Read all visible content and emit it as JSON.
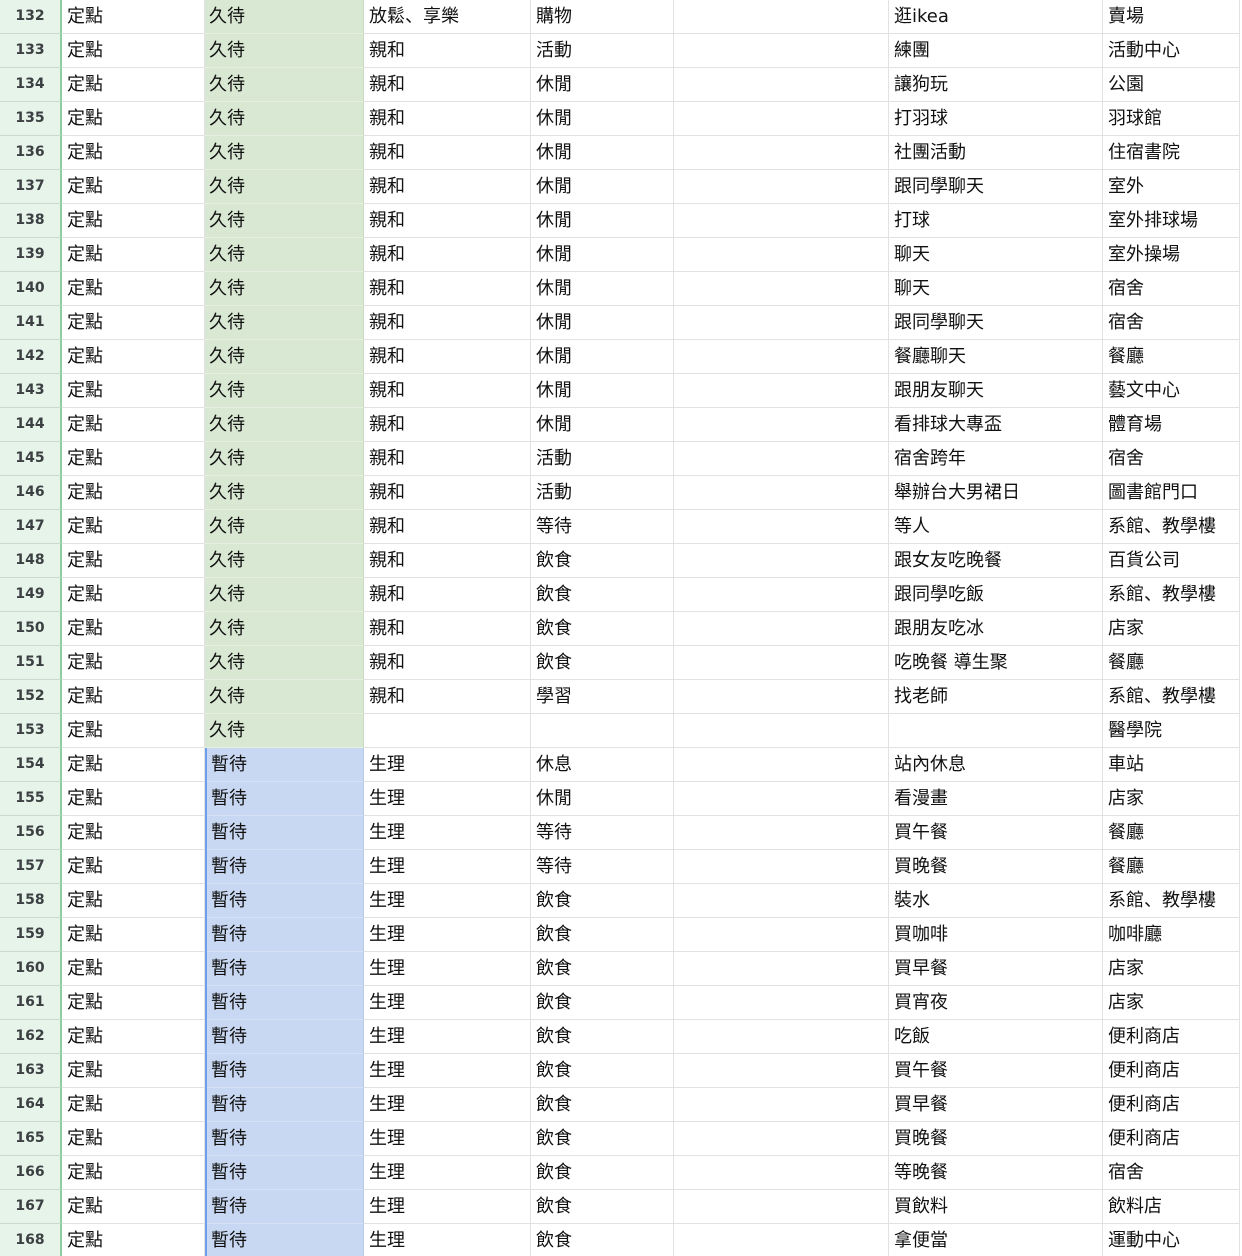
{
  "colors": {
    "long_stay": "#d9e8d3",
    "short_stay": "#c9d8f2",
    "row_header": "#e6f4ea"
  },
  "rows": [
    {
      "n": "132",
      "a": "定點",
      "b": "久待",
      "c": "放鬆、享樂",
      "d": "購物",
      "e": "",
      "f": "逛ikea",
      "g": "賣場"
    },
    {
      "n": "133",
      "a": "定點",
      "b": "久待",
      "c": "親和",
      "d": "活動",
      "e": "",
      "f": "練團",
      "g": "活動中心"
    },
    {
      "n": "134",
      "a": "定點",
      "b": "久待",
      "c": "親和",
      "d": "休閒",
      "e": "",
      "f": "讓狗玩",
      "g": "公園"
    },
    {
      "n": "135",
      "a": "定點",
      "b": "久待",
      "c": "親和",
      "d": "休閒",
      "e": "",
      "f": "打羽球",
      "g": "羽球館"
    },
    {
      "n": "136",
      "a": "定點",
      "b": "久待",
      "c": "親和",
      "d": "休閒",
      "e": "",
      "f": "社團活動",
      "g": "住宿書院"
    },
    {
      "n": "137",
      "a": "定點",
      "b": "久待",
      "c": "親和",
      "d": "休閒",
      "e": "",
      "f": "跟同學聊天",
      "g": "室外"
    },
    {
      "n": "138",
      "a": "定點",
      "b": "久待",
      "c": "親和",
      "d": "休閒",
      "e": "",
      "f": "打球",
      "g": "室外排球場"
    },
    {
      "n": "139",
      "a": "定點",
      "b": "久待",
      "c": "親和",
      "d": "休閒",
      "e": "",
      "f": "聊天",
      "g": "室外操場"
    },
    {
      "n": "140",
      "a": "定點",
      "b": "久待",
      "c": "親和",
      "d": "休閒",
      "e": "",
      "f": "聊天",
      "g": "宿舍"
    },
    {
      "n": "141",
      "a": "定點",
      "b": "久待",
      "c": "親和",
      "d": "休閒",
      "e": "",
      "f": "跟同學聊天",
      "g": "宿舍"
    },
    {
      "n": "142",
      "a": "定點",
      "b": "久待",
      "c": "親和",
      "d": "休閒",
      "e": "",
      "f": "餐廳聊天",
      "g": "餐廳"
    },
    {
      "n": "143",
      "a": "定點",
      "b": "久待",
      "c": "親和",
      "d": "休閒",
      "e": "",
      "f": "跟朋友聊天",
      "g": "藝文中心"
    },
    {
      "n": "144",
      "a": "定點",
      "b": "久待",
      "c": "親和",
      "d": "休閒",
      "e": "",
      "f": "看排球大專盃",
      "g": "體育場"
    },
    {
      "n": "145",
      "a": "定點",
      "b": "久待",
      "c": "親和",
      "d": "活動",
      "e": "",
      "f": "宿舍跨年",
      "g": "宿舍"
    },
    {
      "n": "146",
      "a": "定點",
      "b": "久待",
      "c": "親和",
      "d": "活動",
      "e": "",
      "f": "舉辦台大男裙日",
      "g": "圖書館門口"
    },
    {
      "n": "147",
      "a": "定點",
      "b": "久待",
      "c": "親和",
      "d": "等待",
      "e": "",
      "f": "等人",
      "g": "系館、教學樓"
    },
    {
      "n": "148",
      "a": "定點",
      "b": "久待",
      "c": "親和",
      "d": "飲食",
      "e": "",
      "f": "跟女友吃晚餐",
      "g": "百貨公司"
    },
    {
      "n": "149",
      "a": "定點",
      "b": "久待",
      "c": "親和",
      "d": "飲食",
      "e": "",
      "f": "跟同學吃飯",
      "g": "系館、教學樓"
    },
    {
      "n": "150",
      "a": "定點",
      "b": "久待",
      "c": "親和",
      "d": "飲食",
      "e": "",
      "f": "跟朋友吃冰",
      "g": "店家"
    },
    {
      "n": "151",
      "a": "定點",
      "b": "久待",
      "c": "親和",
      "d": "飲食",
      "e": "",
      "f": "吃晚餐 導生聚",
      "g": "餐廳"
    },
    {
      "n": "152",
      "a": "定點",
      "b": "久待",
      "c": "親和",
      "d": "學習",
      "e": "",
      "f": "找老師",
      "g": "系館、教學樓"
    },
    {
      "n": "153",
      "a": "定點",
      "b": "久待",
      "c": "",
      "d": "",
      "e": "",
      "f": "",
      "g": "醫學院"
    },
    {
      "n": "154",
      "a": "定點",
      "b": "暫待",
      "c": "生理",
      "d": "休息",
      "e": "",
      "f": "站內休息",
      "g": "車站"
    },
    {
      "n": "155",
      "a": "定點",
      "b": "暫待",
      "c": "生理",
      "d": "休閒",
      "e": "",
      "f": "看漫畫",
      "g": "店家"
    },
    {
      "n": "156",
      "a": "定點",
      "b": "暫待",
      "c": "生理",
      "d": "等待",
      "e": "",
      "f": "買午餐",
      "g": "餐廳"
    },
    {
      "n": "157",
      "a": "定點",
      "b": "暫待",
      "c": "生理",
      "d": "等待",
      "e": "",
      "f": "買晚餐",
      "g": "餐廳"
    },
    {
      "n": "158",
      "a": "定點",
      "b": "暫待",
      "c": "生理",
      "d": "飲食",
      "e": "",
      "f": "裝水",
      "g": "系館、教學樓"
    },
    {
      "n": "159",
      "a": "定點",
      "b": "暫待",
      "c": "生理",
      "d": "飲食",
      "e": "",
      "f": "買咖啡",
      "g": "咖啡廳"
    },
    {
      "n": "160",
      "a": "定點",
      "b": "暫待",
      "c": "生理",
      "d": "飲食",
      "e": "",
      "f": "買早餐",
      "g": "店家"
    },
    {
      "n": "161",
      "a": "定點",
      "b": "暫待",
      "c": "生理",
      "d": "飲食",
      "e": "",
      "f": "買宵夜",
      "g": "店家"
    },
    {
      "n": "162",
      "a": "定點",
      "b": "暫待",
      "c": "生理",
      "d": "飲食",
      "e": "",
      "f": "吃飯",
      "g": "便利商店"
    },
    {
      "n": "163",
      "a": "定點",
      "b": "暫待",
      "c": "生理",
      "d": "飲食",
      "e": "",
      "f": "買午餐",
      "g": "便利商店"
    },
    {
      "n": "164",
      "a": "定點",
      "b": "暫待",
      "c": "生理",
      "d": "飲食",
      "e": "",
      "f": "買早餐",
      "g": "便利商店"
    },
    {
      "n": "165",
      "a": "定點",
      "b": "暫待",
      "c": "生理",
      "d": "飲食",
      "e": "",
      "f": "買晚餐",
      "g": "便利商店"
    },
    {
      "n": "166",
      "a": "定點",
      "b": "暫待",
      "c": "生理",
      "d": "飲食",
      "e": "",
      "f": "等晚餐",
      "g": "宿舍"
    },
    {
      "n": "167",
      "a": "定點",
      "b": "暫待",
      "c": "生理",
      "d": "飲食",
      "e": "",
      "f": "買飲料",
      "g": "飲料店"
    },
    {
      "n": "168",
      "a": "定點",
      "b": "暫待",
      "c": "生理",
      "d": "飲食",
      "e": "",
      "f": "拿便當",
      "g": "運動中心"
    }
  ]
}
